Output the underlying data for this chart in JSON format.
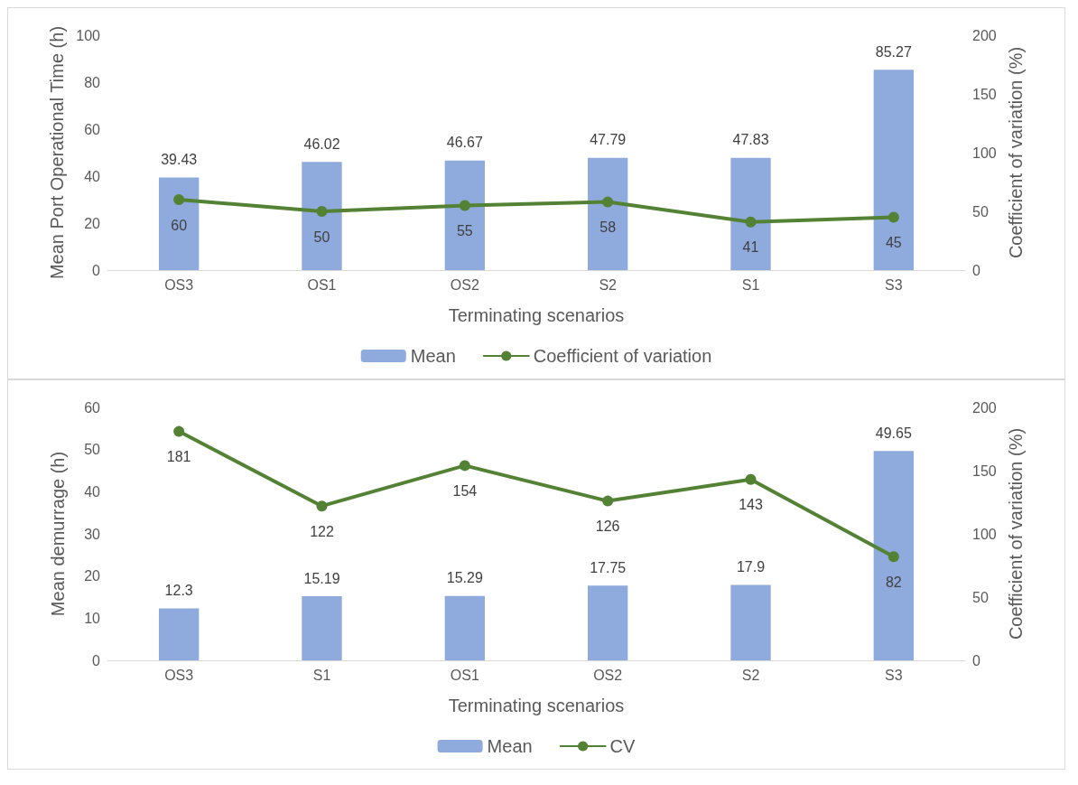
{
  "chart_data": [
    {
      "type": "bar",
      "xlabel": "Terminating scenarios",
      "ylabel": "Mean Port Operational Time (h)",
      "y2label": "Coefficient of variation (%)",
      "categories": [
        "OS3",
        "OS1",
        "OS2",
        "S2",
        "S1",
        "S3"
      ],
      "series": [
        {
          "name": "Mean",
          "color": "#8faadc",
          "values": [
            39.43,
            46.02,
            46.67,
            47.79,
            47.83,
            85.27
          ]
        },
        {
          "name": "Coefficient of variation",
          "type": "line",
          "axis": "y2",
          "color": "#548235",
          "values": [
            60,
            50,
            55,
            58,
            41,
            45
          ]
        }
      ],
      "ylim": [
        0,
        100
      ],
      "yticks": [
        0,
        20,
        40,
        60,
        80,
        100
      ],
      "y2lim": [
        0,
        200
      ],
      "y2ticks": [
        0,
        50,
        100,
        150,
        200
      ],
      "data_labels": true,
      "legend": "bottom",
      "grid": false,
      "marker": "circle",
      "line_style": "solid"
    },
    {
      "type": "bar",
      "xlabel": "Terminating scenarios",
      "ylabel": "Mean demurrage (h)",
      "y2label": "Coefficient of variation (%)",
      "categories": [
        "OS3",
        "S1",
        "OS1",
        "OS2",
        "S2",
        "S3"
      ],
      "series": [
        {
          "name": "Mean",
          "color": "#8faadc",
          "values": [
            12.3,
            15.19,
            15.29,
            17.75,
            17.9,
            49.65
          ]
        },
        {
          "name": "CV",
          "type": "line",
          "axis": "y2",
          "color": "#548235",
          "values": [
            181,
            122,
            154,
            126,
            143,
            82
          ]
        }
      ],
      "ylim": [
        0,
        60
      ],
      "yticks": [
        0,
        10,
        20,
        30,
        40,
        50,
        60
      ],
      "y2lim": [
        0,
        200
      ],
      "y2ticks": [
        0,
        50,
        100,
        150,
        200
      ],
      "data_labels": true,
      "legend": "bottom",
      "grid": false,
      "marker": "circle",
      "line_style": "solid"
    }
  ]
}
